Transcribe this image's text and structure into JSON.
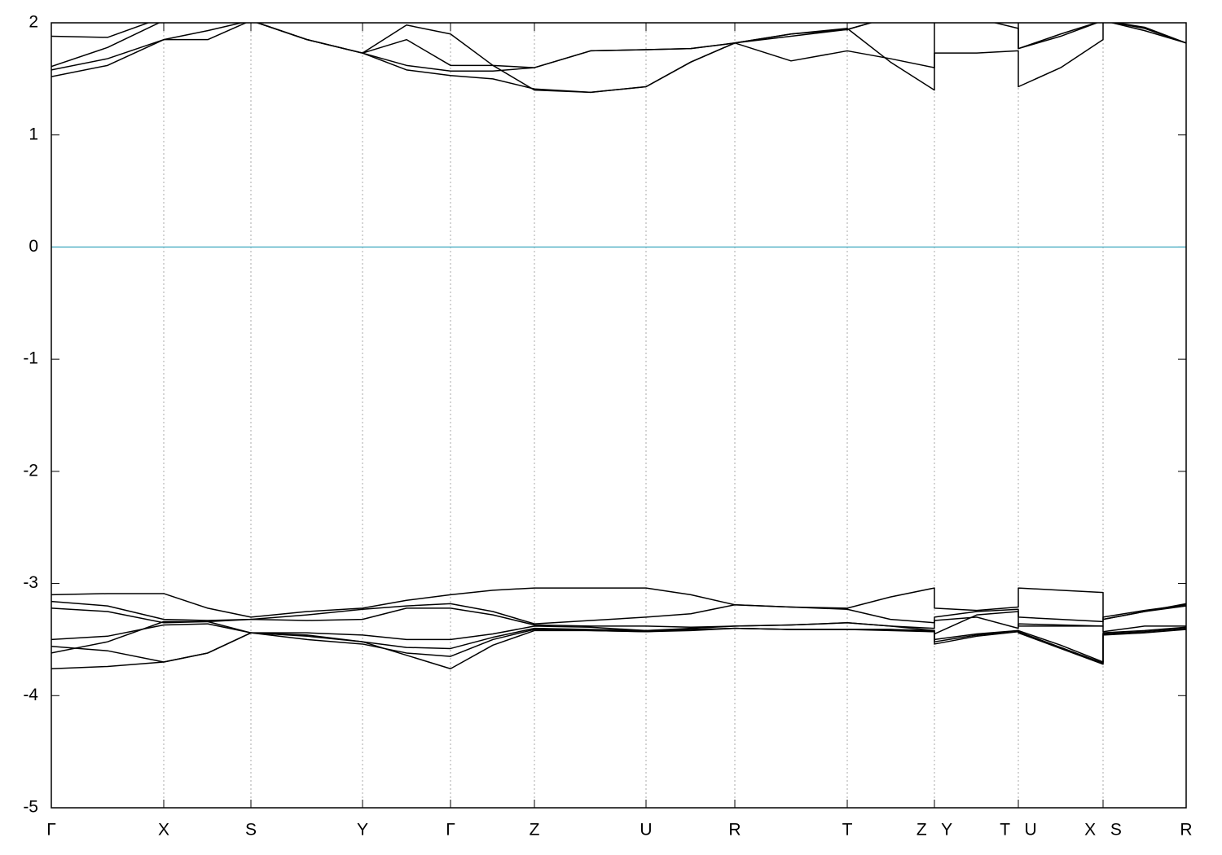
{
  "chart_data": {
    "type": "line",
    "x": [
      0,
      0.69,
      1.38,
      1.92,
      2.45,
      3.14,
      3.82,
      4.36,
      4.9,
      5.42,
      5.93,
      6.62,
      7.3,
      7.85,
      8.39,
      9.08,
      9.77,
      10.3,
      10.84,
      10.84,
      11.36,
      11.87,
      11.87,
      12.39,
      12.91,
      12.91,
      13.42,
      13.93
    ],
    "xlim": [
      0,
      13.93
    ],
    "xticks": [
      {
        "value": 0,
        "label": "Γ"
      },
      {
        "value": 1.38,
        "label": "X"
      },
      {
        "value": 2.45,
        "label": "S"
      },
      {
        "value": 3.82,
        "label": "Y"
      },
      {
        "value": 4.9,
        "label": "Γ"
      },
      {
        "value": 5.93,
        "label": "Z"
      },
      {
        "value": 7.3,
        "label": "U"
      },
      {
        "value": 8.39,
        "label": "R"
      },
      {
        "value": 9.77,
        "label": "T"
      },
      {
        "value": 10.84,
        "label": "Z Y"
      },
      {
        "value": 11.87,
        "label": "T U"
      },
      {
        "value": 12.91,
        "label": "X S"
      },
      {
        "value": 13.93,
        "label": "R"
      }
    ],
    "ylim": [
      -5,
      2
    ],
    "yticks": [
      -5,
      -4,
      -3,
      -2,
      -1,
      0,
      1,
      2
    ],
    "grid": true,
    "fermi_level": 0,
    "fermi_color": "#5ab4c8",
    "series": [
      {
        "color": "#000000",
        "values": [
          1.52,
          1.62,
          1.85,
          1.93,
          2.02,
          1.85,
          1.73,
          1.58,
          1.53,
          1.5,
          1.41,
          1.38,
          1.43,
          1.65,
          1.82,
          1.9,
          1.95,
          1.65,
          1.4,
          1.73,
          1.73,
          1.75,
          1.43,
          1.6,
          1.85,
          2.02,
          1.93,
          1.82
        ]
      },
      {
        "color": "#000000",
        "values": [
          1.58,
          1.68,
          1.85,
          1.85,
          2.02,
          1.85,
          1.73,
          1.62,
          1.57,
          1.57,
          1.6,
          1.75,
          1.76,
          1.77,
          1.82,
          1.66,
          1.75,
          1.68,
          1.6,
          2.05,
          2.04,
          1.95,
          1.77,
          1.88,
          2.02,
          2.02,
          1.95,
          1.82
        ]
      },
      {
        "color": "#000000",
        "values": [
          1.61,
          1.78,
          2.02,
          2.05,
          2.02,
          1.85,
          1.73,
          1.85,
          1.62,
          1.62,
          1.6,
          1.75,
          1.76,
          1.77,
          1.82,
          1.88,
          1.94,
          2.05,
          2.05,
          2.05,
          2.05,
          2.05,
          1.77,
          1.9,
          2.02,
          2.02,
          1.96,
          1.82
        ]
      },
      {
        "color": "#000000",
        "values": [
          1.88,
          1.87,
          2.05,
          2.05,
          2.02,
          1.85,
          1.73,
          1.98,
          1.9,
          1.62,
          1.4,
          1.38,
          1.43,
          1.65,
          1.82,
          1.9,
          1.94,
          2.05,
          2.05,
          2.05,
          2.05,
          2.05,
          2.05,
          2.05,
          2.05,
          2.05,
          2.05,
          2.05
        ]
      },
      {
        "color": "#000000",
        "values": [
          -3.1,
          -3.09,
          -3.09,
          -3.22,
          -3.3,
          -3.25,
          -3.22,
          -3.15,
          -3.1,
          -3.06,
          -3.04,
          -3.04,
          -3.04,
          -3.1,
          -3.19,
          -3.21,
          -3.22,
          -3.12,
          -3.04,
          -3.22,
          -3.24,
          -3.21,
          -3.04,
          -3.06,
          -3.08,
          -3.32,
          -3.25,
          -3.18
        ]
      },
      {
        "color": "#000000",
        "values": [
          -3.16,
          -3.2,
          -3.32,
          -3.33,
          -3.32,
          -3.28,
          -3.23,
          -3.2,
          -3.18,
          -3.25,
          -3.36,
          -3.33,
          -3.3,
          -3.27,
          -3.19,
          -3.21,
          -3.23,
          -3.32,
          -3.35,
          -3.3,
          -3.25,
          -3.23,
          -3.3,
          -3.32,
          -3.34,
          -3.3,
          -3.24,
          -3.19
        ]
      },
      {
        "color": "#000000",
        "values": [
          -3.22,
          -3.25,
          -3.35,
          -3.34,
          -3.32,
          -3.33,
          -3.32,
          -3.22,
          -3.22,
          -3.28,
          -3.37,
          -3.38,
          -3.38,
          -3.39,
          -3.38,
          -3.37,
          -3.35,
          -3.38,
          -3.4,
          -3.33,
          -3.3,
          -3.4,
          -3.36,
          -3.37,
          -3.38,
          -3.32,
          -3.25,
          -3.2
        ]
      },
      {
        "color": "#000000",
        "values": [
          -3.5,
          -3.47,
          -3.37,
          -3.36,
          -3.44,
          -3.44,
          -3.46,
          -3.5,
          -3.5,
          -3.45,
          -3.38,
          -3.39,
          -3.42,
          -3.4,
          -3.38,
          -3.37,
          -3.35,
          -3.38,
          -3.42,
          -3.45,
          -3.28,
          -3.25,
          -3.38,
          -3.38,
          -3.38,
          -3.43,
          -3.38,
          -3.38
        ]
      },
      {
        "color": "#000000",
        "values": [
          -3.56,
          -3.6,
          -3.7,
          -3.62,
          -3.44,
          -3.47,
          -3.52,
          -3.57,
          -3.58,
          -3.48,
          -3.4,
          -3.41,
          -3.42,
          -3.41,
          -3.4,
          -3.41,
          -3.41,
          -3.41,
          -3.42,
          -3.5,
          -3.45,
          -3.42,
          -3.42,
          -3.55,
          -3.7,
          -3.44,
          -3.42,
          -3.39
        ]
      },
      {
        "color": "#000000",
        "values": [
          -3.62,
          -3.52,
          -3.34,
          -3.34,
          -3.44,
          -3.5,
          -3.54,
          -3.62,
          -3.65,
          -3.5,
          -3.41,
          -3.42,
          -3.43,
          -3.41,
          -3.4,
          -3.41,
          -3.41,
          -3.41,
          -3.43,
          -3.54,
          -3.47,
          -3.43,
          -3.43,
          -3.57,
          -3.71,
          -3.45,
          -3.43,
          -3.4
        ]
      },
      {
        "color": "#000000",
        "values": [
          -3.76,
          -3.74,
          -3.7,
          -3.62,
          -3.44,
          -3.46,
          -3.52,
          -3.64,
          -3.76,
          -3.55,
          -3.42,
          -3.42,
          -3.43,
          -3.42,
          -3.4,
          -3.41,
          -3.41,
          -3.42,
          -3.43,
          -3.52,
          -3.46,
          -3.42,
          -3.44,
          -3.58,
          -3.72,
          -3.46,
          -3.44,
          -3.41
        ]
      }
    ]
  }
}
